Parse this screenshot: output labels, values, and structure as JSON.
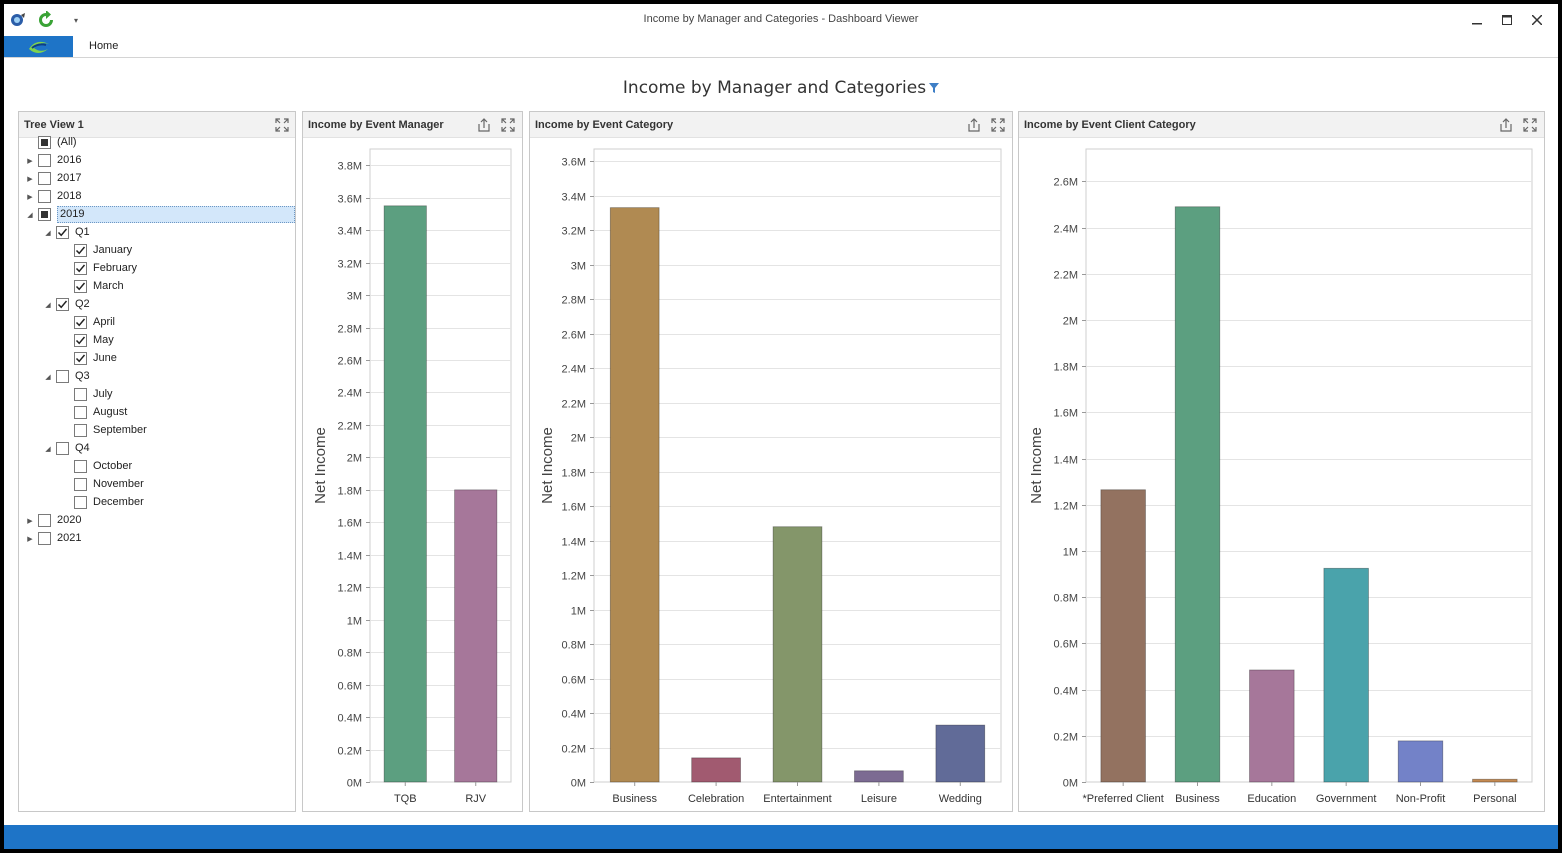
{
  "window": {
    "title": "Income by Manager and Categories - Dashboard Viewer",
    "quick_access": [
      "app-icon",
      "refresh-icon",
      "customize-dropdown-icon"
    ],
    "controls": [
      "minimize-icon",
      "maximize-icon",
      "close-icon"
    ]
  },
  "ribbon": {
    "home_tab": "Home"
  },
  "dashboard": {
    "title": "Income by Manager and Categories"
  },
  "tree": {
    "title": "Tree View 1",
    "nodes": [
      {
        "label": "(All)",
        "level": 0,
        "state": "partial",
        "arrow": "none"
      },
      {
        "label": "2016",
        "level": 0,
        "state": "unchecked",
        "arrow": "collapsed"
      },
      {
        "label": "2017",
        "level": 0,
        "state": "unchecked",
        "arrow": "collapsed"
      },
      {
        "label": "2018",
        "level": 0,
        "state": "unchecked",
        "arrow": "collapsed"
      },
      {
        "label": "2019",
        "level": 0,
        "state": "partial",
        "arrow": "expanded",
        "selected": true
      },
      {
        "label": "Q1",
        "level": 1,
        "state": "checked",
        "arrow": "expanded"
      },
      {
        "label": "January",
        "level": 2,
        "state": "checked",
        "arrow": "none"
      },
      {
        "label": "February",
        "level": 2,
        "state": "checked",
        "arrow": "none"
      },
      {
        "label": "March",
        "level": 2,
        "state": "checked",
        "arrow": "none"
      },
      {
        "label": "Q2",
        "level": 1,
        "state": "checked",
        "arrow": "expanded"
      },
      {
        "label": "April",
        "level": 2,
        "state": "checked",
        "arrow": "none"
      },
      {
        "label": "May",
        "level": 2,
        "state": "checked",
        "arrow": "none"
      },
      {
        "label": "June",
        "level": 2,
        "state": "checked",
        "arrow": "none"
      },
      {
        "label": "Q3",
        "level": 1,
        "state": "unchecked",
        "arrow": "expanded"
      },
      {
        "label": "July",
        "level": 2,
        "state": "unchecked",
        "arrow": "none"
      },
      {
        "label": "August",
        "level": 2,
        "state": "unchecked",
        "arrow": "none"
      },
      {
        "label": "September",
        "level": 2,
        "state": "unchecked",
        "arrow": "none"
      },
      {
        "label": "Q4",
        "level": 1,
        "state": "unchecked",
        "arrow": "expanded"
      },
      {
        "label": "October",
        "level": 2,
        "state": "unchecked",
        "arrow": "none"
      },
      {
        "label": "November",
        "level": 2,
        "state": "unchecked",
        "arrow": "none"
      },
      {
        "label": "December",
        "level": 2,
        "state": "unchecked",
        "arrow": "none"
      },
      {
        "label": "2020",
        "level": 0,
        "state": "unchecked",
        "arrow": "collapsed"
      },
      {
        "label": "2021",
        "level": 0,
        "state": "unchecked",
        "arrow": "collapsed"
      }
    ]
  },
  "chart_data": [
    {
      "type": "bar",
      "title": "Income by Event Manager",
      "ylabel": "Net Income",
      "xlabel": "",
      "categories": [
        "TQB",
        "RJV"
      ],
      "values": [
        3550000,
        1800000
      ],
      "colors": [
        "#5c9f80",
        "#a6779a"
      ],
      "ylim": [
        0,
        3900000
      ],
      "ytick_step": 200000,
      "ytick_labels": [
        "0M",
        "0.2M",
        "0.4M",
        "0.6M",
        "0.8M",
        "1M",
        "1.2M",
        "1.4M",
        "1.6M",
        "1.8M",
        "2M",
        "2.2M",
        "2.4M",
        "2.6M",
        "2.8M",
        "3M",
        "3.2M",
        "3.4M",
        "3.6M",
        "3.8M"
      ],
      "grid": true
    },
    {
      "type": "bar",
      "title": "Income by Event Category",
      "ylabel": "Net Income",
      "xlabel": "",
      "categories": [
        "Business",
        "Celebration",
        "Entertainment",
        "Leisure",
        "Wedding"
      ],
      "values": [
        3330000,
        140000,
        1480000,
        65000,
        330000
      ],
      "colors": [
        "#b08a52",
        "#a15a70",
        "#84966a",
        "#7c6b92",
        "#616b98"
      ],
      "ylim": [
        0,
        3670000
      ],
      "ytick_step": 200000,
      "ytick_labels": [
        "0M",
        "0.2M",
        "0.4M",
        "0.6M",
        "0.8M",
        "1M",
        "1.2M",
        "1.4M",
        "1.6M",
        "1.8M",
        "2M",
        "2.2M",
        "2.4M",
        "2.6M",
        "2.8M",
        "3M",
        "3.2M",
        "3.4M",
        "3.6M"
      ],
      "grid": true
    },
    {
      "type": "bar",
      "title": "Income by Event Client Category",
      "ylabel": "Net Income",
      "xlabel": "",
      "categories": [
        "*Preferred Client",
        "Business",
        "Education",
        "Government",
        "Non-Profit",
        "Personal"
      ],
      "values": [
        1265000,
        2490000,
        485000,
        925000,
        178000,
        12000
      ],
      "colors": [
        "#937260",
        "#5c9f80",
        "#a6779a",
        "#4aa3ab",
        "#7382c8",
        "#c48a52"
      ],
      "ylim": [
        0,
        2740000
      ],
      "ytick_step": 200000,
      "ytick_labels": [
        "0M",
        "0.2M",
        "0.4M",
        "0.6M",
        "0.8M",
        "1M",
        "1.2M",
        "1.4M",
        "1.6M",
        "1.8M",
        "2M",
        "2.2M",
        "2.4M",
        "2.6M"
      ],
      "grid": true
    }
  ]
}
